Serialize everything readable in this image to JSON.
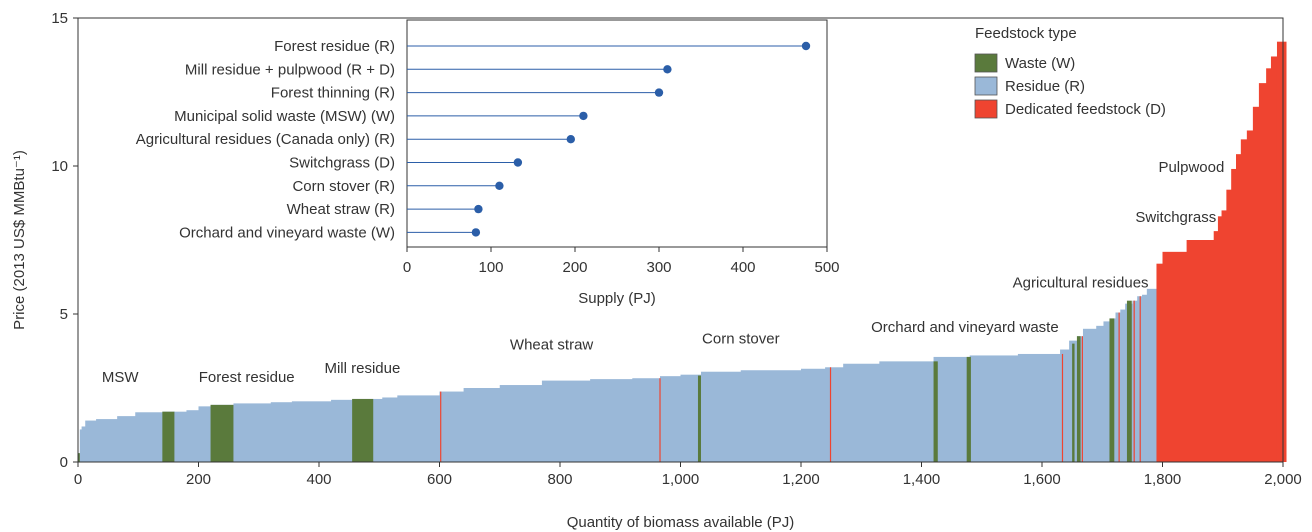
{
  "chart_data": [
    {
      "type": "bar",
      "subtype": "supply-curve-step",
      "xlabel": "Quantity of biomass available (PJ)",
      "ylabel": "Price (2013 US$ MMBtu⁻¹)",
      "xlim": [
        0,
        2000
      ],
      "ylim": [
        0,
        15
      ],
      "x_ticks": [
        0,
        200,
        400,
        600,
        800,
        1000,
        1200,
        1400,
        1600,
        1800,
        2000
      ],
      "x_tick_labels": [
        "0",
        "200",
        "400",
        "600",
        "800",
        "1,000",
        "1,200",
        "1,400",
        "1,600",
        "1,800",
        "2,000"
      ],
      "y_ticks": [
        0,
        5,
        10,
        15
      ],
      "y_tick_labels": [
        "0",
        "5",
        "10",
        "15"
      ],
      "grid": false,
      "legend": {
        "title": "Feedstock type",
        "placement": "top-right",
        "entries": [
          {
            "key": "W",
            "label": "Waste (W)"
          },
          {
            "key": "R",
            "label": "Residue (R)"
          },
          {
            "key": "D",
            "label": "Dedicated feedstock (D)"
          }
        ]
      },
      "colors": {
        "W": "#5a7a3c",
        "R": "#9ab8d8",
        "D": "#ef4430"
      },
      "steps": [
        {
          "x0": 0,
          "x1": 3,
          "y": 0.3,
          "t": "W"
        },
        {
          "x0": 3,
          "x1": 6,
          "y": 1.1,
          "t": "R"
        },
        {
          "x0": 6,
          "x1": 12,
          "y": 1.2,
          "t": "R"
        },
        {
          "x0": 12,
          "x1": 30,
          "y": 1.4,
          "t": "R"
        },
        {
          "x0": 30,
          "x1": 65,
          "y": 1.45,
          "t": "R"
        },
        {
          "x0": 65,
          "x1": 95,
          "y": 1.55,
          "t": "R"
        },
        {
          "x0": 95,
          "x1": 140,
          "y": 1.68,
          "t": "R"
        },
        {
          "x0": 140,
          "x1": 160,
          "y": 1.7,
          "t": "R"
        },
        {
          "x0": 160,
          "x1": 180,
          "y": 1.7,
          "t": "R"
        },
        {
          "x0": 180,
          "x1": 200,
          "y": 1.75,
          "t": "R"
        },
        {
          "x0": 200,
          "x1": 220,
          "y": 1.88,
          "t": "R"
        },
        {
          "x0": 220,
          "x1": 258,
          "y": 1.93,
          "t": "R"
        },
        {
          "x0": 258,
          "x1": 320,
          "y": 1.98,
          "t": "R"
        },
        {
          "x0": 320,
          "x1": 355,
          "y": 2.02,
          "t": "R"
        },
        {
          "x0": 355,
          "x1": 420,
          "y": 2.05,
          "t": "R"
        },
        {
          "x0": 420,
          "x1": 455,
          "y": 2.1,
          "t": "R"
        },
        {
          "x0": 455,
          "x1": 505,
          "y": 2.13,
          "t": "R"
        },
        {
          "x0": 505,
          "x1": 530,
          "y": 2.18,
          "t": "R"
        },
        {
          "x0": 530,
          "x1": 600,
          "y": 2.25,
          "t": "R"
        },
        {
          "x0": 600,
          "x1": 640,
          "y": 2.38,
          "t": "R"
        },
        {
          "x0": 640,
          "x1": 700,
          "y": 2.5,
          "t": "R"
        },
        {
          "x0": 700,
          "x1": 770,
          "y": 2.6,
          "t": "R"
        },
        {
          "x0": 770,
          "x1": 850,
          "y": 2.75,
          "t": "R"
        },
        {
          "x0": 850,
          "x1": 920,
          "y": 2.8,
          "t": "R"
        },
        {
          "x0": 920,
          "x1": 966,
          "y": 2.83,
          "t": "R"
        },
        {
          "x0": 966,
          "x1": 1000,
          "y": 2.9,
          "t": "R"
        },
        {
          "x0": 1000,
          "x1": 1034,
          "y": 2.95,
          "t": "R"
        },
        {
          "x0": 1034,
          "x1": 1100,
          "y": 3.05,
          "t": "R"
        },
        {
          "x0": 1100,
          "x1": 1200,
          "y": 3.1,
          "t": "R"
        },
        {
          "x0": 1200,
          "x1": 1240,
          "y": 3.15,
          "t": "R"
        },
        {
          "x0": 1240,
          "x1": 1270,
          "y": 3.2,
          "t": "R"
        },
        {
          "x0": 1270,
          "x1": 1330,
          "y": 3.32,
          "t": "R"
        },
        {
          "x0": 1330,
          "x1": 1420,
          "y": 3.4,
          "t": "R"
        },
        {
          "x0": 1420,
          "x1": 1480,
          "y": 3.55,
          "t": "R"
        },
        {
          "x0": 1480,
          "x1": 1560,
          "y": 3.6,
          "t": "R"
        },
        {
          "x0": 1560,
          "x1": 1630,
          "y": 3.65,
          "t": "R"
        },
        {
          "x0": 1630,
          "x1": 1645,
          "y": 3.8,
          "t": "R"
        },
        {
          "x0": 1645,
          "x1": 1658,
          "y": 4.1,
          "t": "R"
        },
        {
          "x0": 1658,
          "x1": 1668,
          "y": 4.25,
          "t": "R"
        },
        {
          "x0": 1668,
          "x1": 1690,
          "y": 4.5,
          "t": "R"
        },
        {
          "x0": 1690,
          "x1": 1702,
          "y": 4.6,
          "t": "R"
        },
        {
          "x0": 1702,
          "x1": 1712,
          "y": 4.75,
          "t": "R"
        },
        {
          "x0": 1712,
          "x1": 1722,
          "y": 4.85,
          "t": "R"
        },
        {
          "x0": 1722,
          "x1": 1730,
          "y": 5.05,
          "t": "R"
        },
        {
          "x0": 1730,
          "x1": 1738,
          "y": 5.15,
          "t": "R"
        },
        {
          "x0": 1738,
          "x1": 1750,
          "y": 5.35,
          "t": "R"
        },
        {
          "x0": 1750,
          "x1": 1758,
          "y": 5.45,
          "t": "R"
        },
        {
          "x0": 1758,
          "x1": 1766,
          "y": 5.6,
          "t": "R"
        },
        {
          "x0": 1766,
          "x1": 1774,
          "y": 5.65,
          "t": "R"
        },
        {
          "x0": 1774,
          "x1": 1790,
          "y": 5.85,
          "t": "R"
        },
        {
          "x0": 1790,
          "x1": 1800,
          "y": 6.7,
          "t": "D"
        },
        {
          "x0": 1800,
          "x1": 1840,
          "y": 7.1,
          "t": "D"
        },
        {
          "x0": 1840,
          "x1": 1885,
          "y": 7.5,
          "t": "D"
        },
        {
          "x0": 1885,
          "x1": 1892,
          "y": 7.8,
          "t": "D"
        },
        {
          "x0": 1892,
          "x1": 1898,
          "y": 8.3,
          "t": "D"
        },
        {
          "x0": 1898,
          "x1": 1906,
          "y": 8.5,
          "t": "D"
        },
        {
          "x0": 1906,
          "x1": 1914,
          "y": 9.2,
          "t": "D"
        },
        {
          "x0": 1914,
          "x1": 1922,
          "y": 9.9,
          "t": "D"
        },
        {
          "x0": 1922,
          "x1": 1930,
          "y": 10.4,
          "t": "D"
        },
        {
          "x0": 1930,
          "x1": 1940,
          "y": 10.9,
          "t": "D"
        },
        {
          "x0": 1940,
          "x1": 1950,
          "y": 11.2,
          "t": "D"
        },
        {
          "x0": 1950,
          "x1": 1960,
          "y": 12.0,
          "t": "D"
        },
        {
          "x0": 1960,
          "x1": 1972,
          "y": 12.8,
          "t": "D"
        },
        {
          "x0": 1972,
          "x1": 1980,
          "y": 13.3,
          "t": "D"
        },
        {
          "x0": 1980,
          "x1": 1990,
          "y": 13.7,
          "t": "D"
        },
        {
          "x0": 1990,
          "x1": 2005,
          "y": 14.2,
          "t": "D"
        }
      ],
      "waste_bands": [
        {
          "x0": 140,
          "x1": 160,
          "y": 1.7
        },
        {
          "x0": 220,
          "x1": 258,
          "y": 1.93
        },
        {
          "x0": 455,
          "x1": 490,
          "y": 2.13
        },
        {
          "x0": 1029,
          "x1": 1034,
          "y": 2.92
        },
        {
          "x0": 1420,
          "x1": 1427,
          "y": 3.4
        },
        {
          "x0": 1475,
          "x1": 1482,
          "y": 3.55
        },
        {
          "x0": 1650,
          "x1": 1654,
          "y": 4.0
        },
        {
          "x0": 1658,
          "x1": 1664,
          "y": 4.25
        },
        {
          "x0": 1712,
          "x1": 1720,
          "y": 4.85
        },
        {
          "x0": 1741,
          "x1": 1749,
          "y": 5.45
        }
      ],
      "dedicated_lines": [
        {
          "x": 602,
          "y": 2.38
        },
        {
          "x": 966,
          "y": 2.83
        },
        {
          "x": 1249,
          "y": 3.2
        },
        {
          "x": 1634,
          "y": 3.65
        },
        {
          "x": 1667,
          "y": 4.25
        },
        {
          "x": 1728,
          "y": 5.05
        },
        {
          "x": 1753,
          "y": 5.45
        },
        {
          "x": 1763,
          "y": 5.6
        }
      ],
      "annotations": [
        {
          "text": "MSW",
          "x": 70,
          "y": 2.7
        },
        {
          "text": "Forest residue",
          "x": 280,
          "y": 2.7
        },
        {
          "text": "Mill residue",
          "x": 472,
          "y": 3.0
        },
        {
          "text": "Wheat straw",
          "x": 786,
          "y": 3.8
        },
        {
          "text": "Corn stover",
          "x": 1100,
          "y": 4.0
        },
        {
          "text": "Orchard and vineyard waste",
          "x": 1472,
          "y": 4.4
        },
        {
          "text": "Agricultural residues",
          "x": 1664,
          "y": 5.9
        },
        {
          "text": "Pulpwood",
          "x": 1848,
          "y": 9.8
        },
        {
          "text": "Switchgrass",
          "x": 1822,
          "y": 8.1
        }
      ]
    },
    {
      "type": "scatter",
      "subtype": "lollipop",
      "xlabel": "Supply (PJ)",
      "xlim": [
        0,
        500
      ],
      "x_ticks": [
        0,
        100,
        200,
        300,
        400,
        500
      ],
      "x_tick_labels": [
        "0",
        "100",
        "200",
        "300",
        "400",
        "500"
      ],
      "point_color": "#2b5ea8",
      "categories": [
        "Forest residue (R)",
        "Mill residue + pulpwood (R + D)",
        "Forest thinning (R)",
        "Municipal solid waste (MSW) (W)",
        "Agricultural residues (Canada only) (R)",
        "Switchgrass (D)",
        "Corn stover (R)",
        "Wheat straw (R)",
        "Orchard and vineyard waste (W)"
      ],
      "values": [
        475,
        310,
        300,
        210,
        195,
        132,
        110,
        85,
        82
      ]
    }
  ]
}
